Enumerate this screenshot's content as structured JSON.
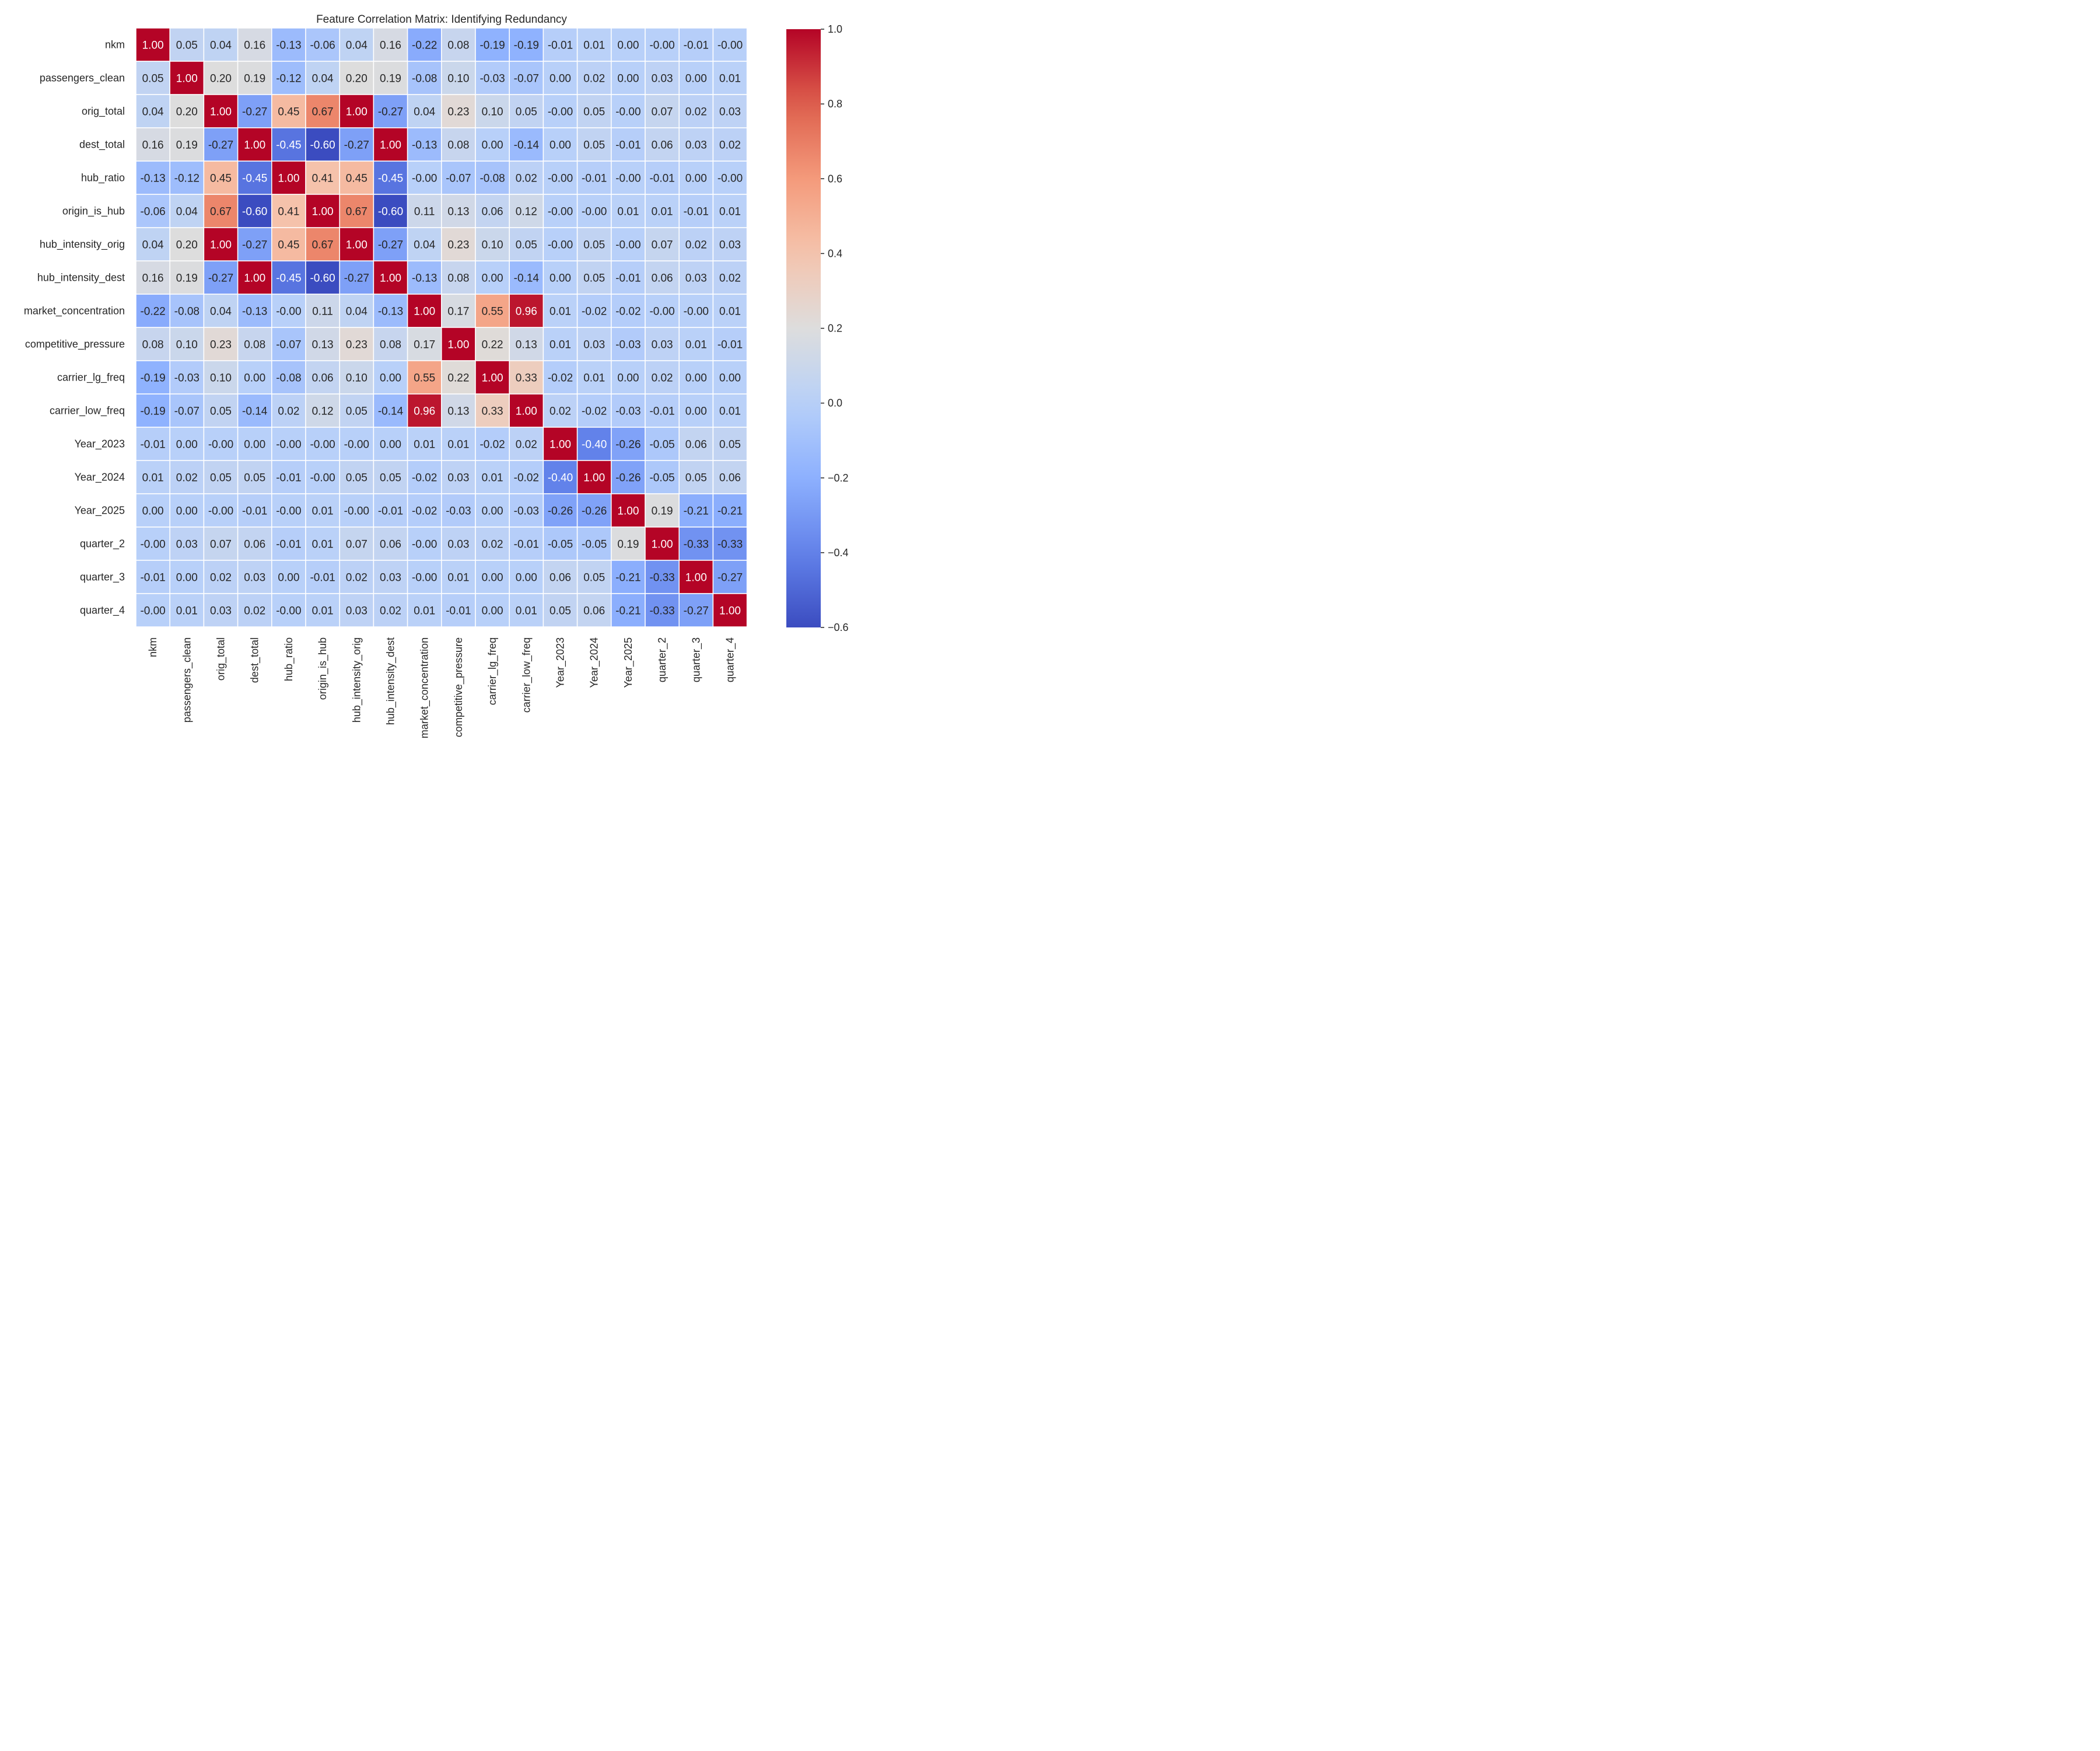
{
  "chart_data": {
    "type": "heatmap",
    "title": "Feature Correlation Matrix: Identifying Redundancy",
    "xlabel": "",
    "ylabel": "",
    "labels": [
      "nkm",
      "passengers_clean",
      "orig_total",
      "dest_total",
      "hub_ratio",
      "origin_is_hub",
      "hub_intensity_orig",
      "hub_intensity_dest",
      "market_concentration",
      "competitive_pressure",
      "carrier_lg_freq",
      "carrier_low_freq",
      "Year_2023",
      "Year_2024",
      "Year_2025",
      "quarter_2",
      "quarter_3",
      "quarter_4"
    ],
    "values": [
      [
        1.0,
        0.05,
        0.04,
        0.16,
        -0.13,
        -0.06,
        0.04,
        0.16,
        -0.22,
        0.08,
        -0.19,
        -0.19,
        -0.01,
        0.01,
        0.0,
        -0.0,
        -0.01,
        -0.0
      ],
      [
        0.05,
        1.0,
        0.2,
        0.19,
        -0.12,
        0.04,
        0.2,
        0.19,
        -0.08,
        0.1,
        -0.03,
        -0.07,
        0.0,
        0.02,
        0.0,
        0.03,
        0.0,
        0.01
      ],
      [
        0.04,
        0.2,
        1.0,
        -0.27,
        0.45,
        0.67,
        1.0,
        -0.27,
        0.04,
        0.23,
        0.1,
        0.05,
        -0.0,
        0.05,
        -0.0,
        0.07,
        0.02,
        0.03
      ],
      [
        0.16,
        0.19,
        -0.27,
        1.0,
        -0.45,
        -0.6,
        -0.27,
        1.0,
        -0.13,
        0.08,
        0.0,
        -0.14,
        0.0,
        0.05,
        -0.01,
        0.06,
        0.03,
        0.02
      ],
      [
        -0.13,
        -0.12,
        0.45,
        -0.45,
        1.0,
        0.41,
        0.45,
        -0.45,
        -0.0,
        -0.07,
        -0.08,
        0.02,
        -0.0,
        -0.01,
        -0.0,
        -0.01,
        0.0,
        -0.0
      ],
      [
        -0.06,
        0.04,
        0.67,
        -0.6,
        0.41,
        1.0,
        0.67,
        -0.6,
        0.11,
        0.13,
        0.06,
        0.12,
        -0.0,
        -0.0,
        0.01,
        0.01,
        -0.01,
        0.01
      ],
      [
        0.04,
        0.2,
        1.0,
        -0.27,
        0.45,
        0.67,
        1.0,
        -0.27,
        0.04,
        0.23,
        0.1,
        0.05,
        -0.0,
        0.05,
        -0.0,
        0.07,
        0.02,
        0.03
      ],
      [
        0.16,
        0.19,
        -0.27,
        1.0,
        -0.45,
        -0.6,
        -0.27,
        1.0,
        -0.13,
        0.08,
        0.0,
        -0.14,
        0.0,
        0.05,
        -0.01,
        0.06,
        0.03,
        0.02
      ],
      [
        -0.22,
        -0.08,
        0.04,
        -0.13,
        -0.0,
        0.11,
        0.04,
        -0.13,
        1.0,
        0.17,
        0.55,
        0.96,
        0.01,
        -0.02,
        -0.02,
        -0.0,
        -0.0,
        0.01
      ],
      [
        0.08,
        0.1,
        0.23,
        0.08,
        -0.07,
        0.13,
        0.23,
        0.08,
        0.17,
        1.0,
        0.22,
        0.13,
        0.01,
        0.03,
        -0.03,
        0.03,
        0.01,
        -0.01
      ],
      [
        -0.19,
        -0.03,
        0.1,
        0.0,
        -0.08,
        0.06,
        0.1,
        0.0,
        0.55,
        0.22,
        1.0,
        0.33,
        -0.02,
        0.01,
        0.0,
        0.02,
        0.0,
        0.0
      ],
      [
        -0.19,
        -0.07,
        0.05,
        -0.14,
        0.02,
        0.12,
        0.05,
        -0.14,
        0.96,
        0.13,
        0.33,
        1.0,
        0.02,
        -0.02,
        -0.03,
        -0.01,
        0.0,
        0.01
      ],
      [
        -0.01,
        0.0,
        -0.0,
        0.0,
        -0.0,
        -0.0,
        -0.0,
        0.0,
        0.01,
        0.01,
        -0.02,
        0.02,
        1.0,
        -0.4,
        -0.26,
        -0.05,
        0.06,
        0.05
      ],
      [
        0.01,
        0.02,
        0.05,
        0.05,
        -0.01,
        -0.0,
        0.05,
        0.05,
        -0.02,
        0.03,
        0.01,
        -0.02,
        -0.4,
        1.0,
        -0.26,
        -0.05,
        0.05,
        0.06
      ],
      [
        0.0,
        0.0,
        -0.0,
        -0.01,
        -0.0,
        0.01,
        -0.0,
        -0.01,
        -0.02,
        -0.03,
        0.0,
        -0.03,
        -0.26,
        -0.26,
        1.0,
        0.19,
        -0.21,
        -0.21
      ],
      [
        -0.0,
        0.03,
        0.07,
        0.06,
        -0.01,
        0.01,
        0.07,
        0.06,
        -0.0,
        0.03,
        0.02,
        -0.01,
        -0.05,
        -0.05,
        0.19,
        1.0,
        -0.33,
        -0.33
      ],
      [
        -0.01,
        0.0,
        0.02,
        0.03,
        0.0,
        -0.01,
        0.02,
        0.03,
        -0.0,
        0.01,
        0.0,
        0.0,
        0.06,
        0.05,
        -0.21,
        -0.33,
        1.0,
        -0.27
      ],
      [
        -0.0,
        0.01,
        0.03,
        0.02,
        -0.0,
        0.01,
        0.03,
        0.02,
        0.01,
        -0.01,
        0.0,
        0.01,
        0.05,
        0.06,
        -0.21,
        -0.33,
        -0.27,
        1.0
      ]
    ],
    "value_format": "0.00",
    "colormap": "coolwarm",
    "vmin": -0.6,
    "vmax": 1.0,
    "colorbar": {
      "ticks": [
        -0.6,
        -0.4,
        -0.2,
        0.0,
        0.2,
        0.4,
        0.6,
        0.8,
        1.0
      ],
      "tick_labels": [
        "−0.6",
        "−0.4",
        "−0.2",
        "0.0",
        "0.2",
        "0.4",
        "0.6",
        "0.8",
        "1.0"
      ],
      "placement": "right"
    },
    "grid_lines_color": "#ffffff",
    "text_colors": {
      "dark": "#262626",
      "light": "#ffffff"
    }
  }
}
